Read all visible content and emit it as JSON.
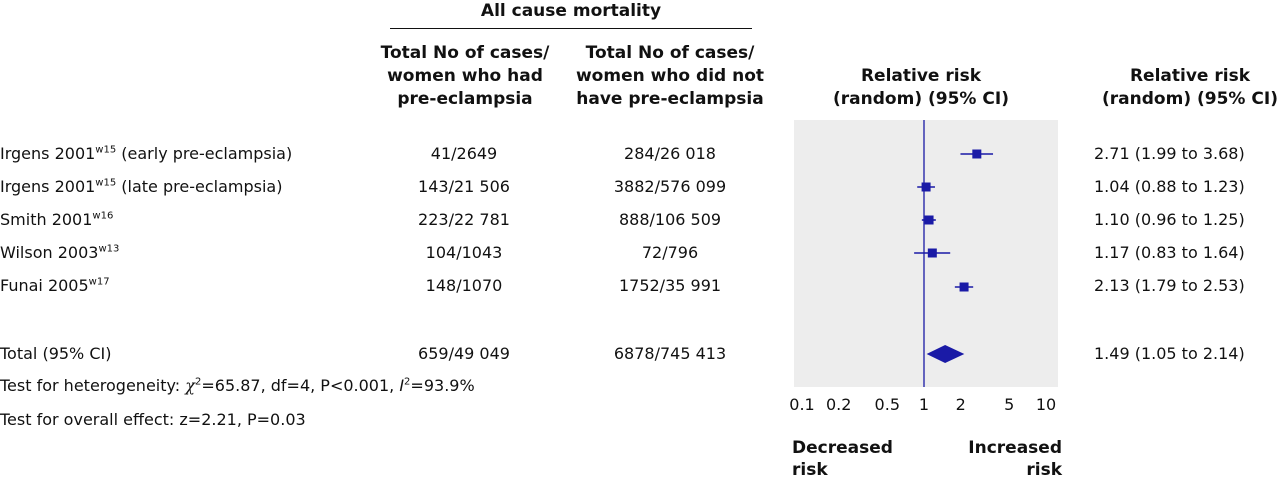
{
  "header": {
    "group_title": "All cause mortality",
    "col_cases_pe": [
      "Total No of cases/",
      "women who had",
      "pre-eclampsia"
    ],
    "col_cases_nope": [
      "Total No of cases/",
      "women who did not",
      "have pre-eclampsia"
    ],
    "col_plot": [
      "Relative risk",
      "(random) (95% CI)"
    ],
    "col_rr": [
      "Relative risk",
      "(random) (95% CI)"
    ]
  },
  "studies": [
    {
      "name": "Irgens 2001",
      "sup": "w15",
      "suffix": " (early pre-eclampsia)",
      "cases_pe": "41/2649",
      "cases_nope": "284/26 018",
      "rr_text": "2.71 (1.99 to 3.68)"
    },
    {
      "name": "Irgens 2001",
      "sup": "w15",
      "suffix": " (late pre-eclampsia)",
      "cases_pe": "143/21 506",
      "cases_nope": "3882/576 099",
      "rr_text": "1.04 (0.88 to 1.23)"
    },
    {
      "name": "Smith 2001",
      "sup": "w16",
      "suffix": "",
      "cases_pe": "223/22 781",
      "cases_nope": "888/106 509",
      "rr_text": "1.10 (0.96 to 1.25)"
    },
    {
      "name": "Wilson 2003",
      "sup": "w13",
      "suffix": "",
      "cases_pe": "104/1043",
      "cases_nope": "72/796",
      "rr_text": "1.17 (0.83 to 1.64)"
    },
    {
      "name": "Funai 2005",
      "sup": "w17",
      "suffix": "",
      "cases_pe": "148/1070",
      "cases_nope": "1752/35 991",
      "rr_text": "2.13 (1.79 to 2.53)"
    }
  ],
  "total": {
    "label": "Total (95% CI)",
    "cases_pe": "659/49 049",
    "cases_nope": "6878/745 413",
    "rr_text": "1.49 (1.05 to 2.14)"
  },
  "heterogeneity": {
    "prefix": "Test for heterogeneity: ",
    "chi": "χ",
    "chi_sup": "2",
    "rest1": "=65.87, df=4, P<0.001, ",
    "i": "I",
    "i_sup": "2",
    "rest2": "=93.9%"
  },
  "overall_effect": "Test for overall effect: z=2.21, P=0.03",
  "axis_labels": {
    "left": [
      "Decreased",
      "risk"
    ],
    "right": [
      "Increased",
      "risk"
    ]
  },
  "colors": {
    "marker": "#1a1aa6",
    "panel": "#ededed",
    "refline": "#1a1aa6",
    "text": "#111111"
  },
  "chart_data": {
    "type": "forest",
    "scale": "log",
    "xlim": [
      0.1,
      10
    ],
    "reference_line": 1,
    "ticks": [
      0.1,
      0.2,
      0.5,
      1,
      2,
      5,
      10
    ],
    "tick_labels": [
      "0.1",
      "0.2",
      "0.5",
      "1",
      "2",
      "5",
      "10"
    ],
    "studies": [
      {
        "rr": 2.71,
        "lo": 1.99,
        "hi": 3.68
      },
      {
        "rr": 1.04,
        "lo": 0.88,
        "hi": 1.23
      },
      {
        "rr": 1.1,
        "lo": 0.96,
        "hi": 1.25
      },
      {
        "rr": 1.17,
        "lo": 0.83,
        "hi": 1.64
      },
      {
        "rr": 2.13,
        "lo": 1.79,
        "hi": 2.53
      }
    ],
    "total": {
      "rr": 1.49,
      "lo": 1.05,
      "hi": 2.14
    }
  }
}
